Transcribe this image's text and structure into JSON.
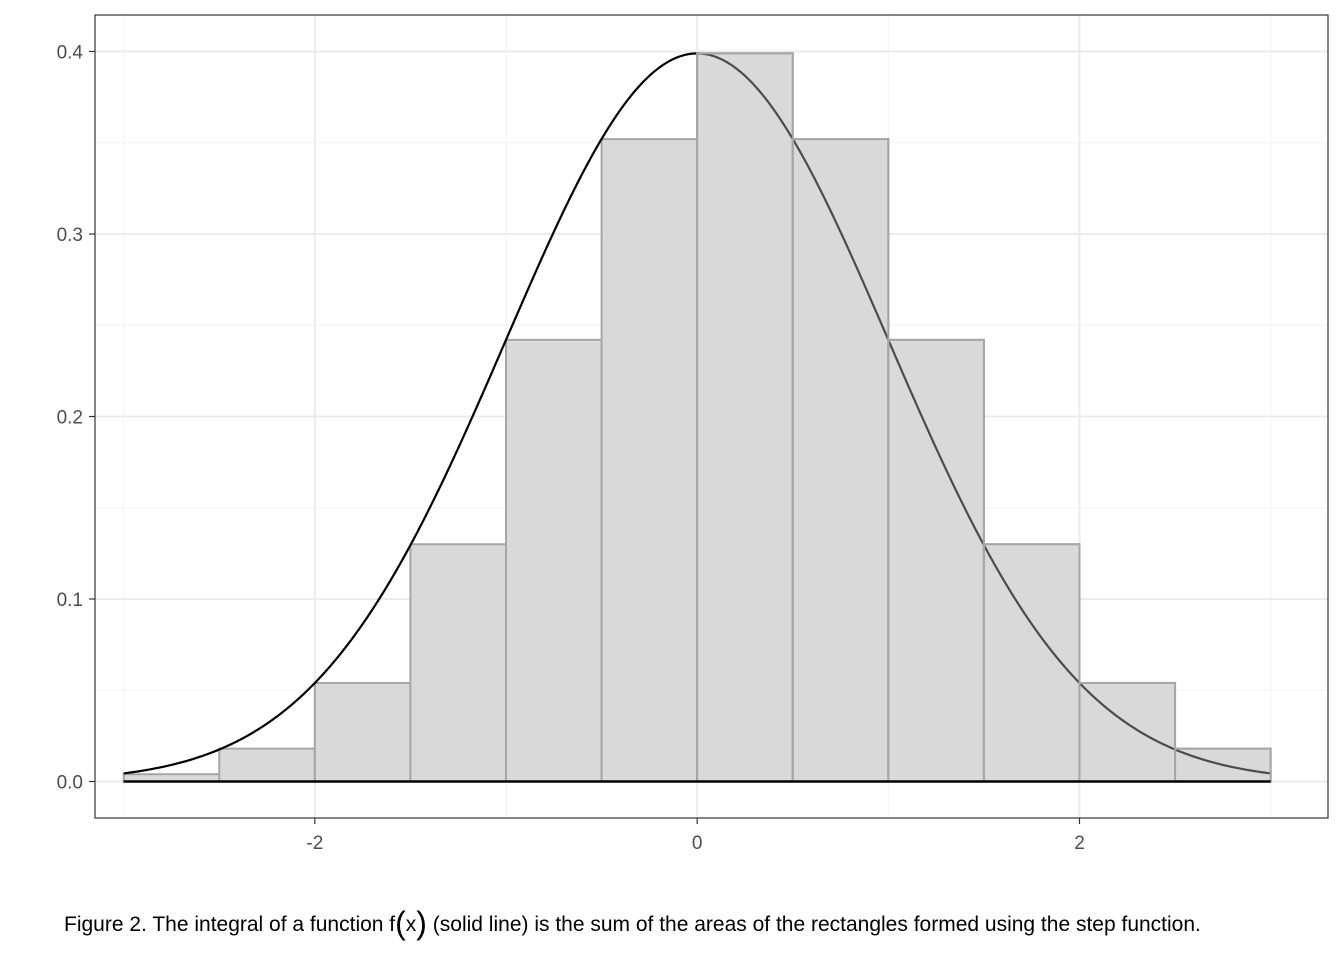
{
  "chart_data": {
    "type": "area",
    "title": "",
    "xlabel": "",
    "ylabel": "",
    "xlim": [
      -3.15,
      3.3
    ],
    "ylim": [
      -0.02,
      0.42
    ],
    "x_ticks": [
      -2,
      0,
      2
    ],
    "x_tick_labels": [
      "-2",
      "0",
      "2"
    ],
    "y_ticks": [
      0.0,
      0.1,
      0.2,
      0.3,
      0.4
    ],
    "y_tick_labels": [
      "0.0",
      "0.1",
      "0.2",
      "0.3",
      "0.4"
    ],
    "grid": true,
    "legend": "none",
    "series": [
      {
        "type": "line",
        "function": "standard normal density",
        "x_range": [
          -3,
          3
        ]
      },
      {
        "type": "step",
        "x_start": [
          -3,
          -2.5,
          -2,
          -1.5,
          -1,
          -0.5,
          0,
          0.5,
          1,
          1.5,
          2,
          2.5
        ],
        "x_end": [
          -2.5,
          -2,
          -1.5,
          -1,
          -0.5,
          0,
          0.5,
          1,
          1.5,
          2,
          2.5,
          3
        ],
        "values": [
          0.004,
          0.018,
          0.054,
          0.13,
          0.242,
          0.352,
          0.399,
          0.352,
          0.242,
          0.13,
          0.054,
          0.018
        ]
      }
    ],
    "baseline_y": 0,
    "colors": {
      "curve": "#000000",
      "step_fill": "#d9d9d9",
      "step_stroke": "#a6a6a6",
      "grid_major": "#ebebeb",
      "grid_minor": "#f2f2f2",
      "panel_border": "#333333",
      "tick_text": "#4d4d4d"
    }
  },
  "caption": {
    "before": "Figure 2. The integral of a function f",
    "lparen": "(",
    "arg": "x",
    "rparen": ")",
    "after": " (solid line) is the sum of the areas of the rectangles formed using the step function."
  }
}
